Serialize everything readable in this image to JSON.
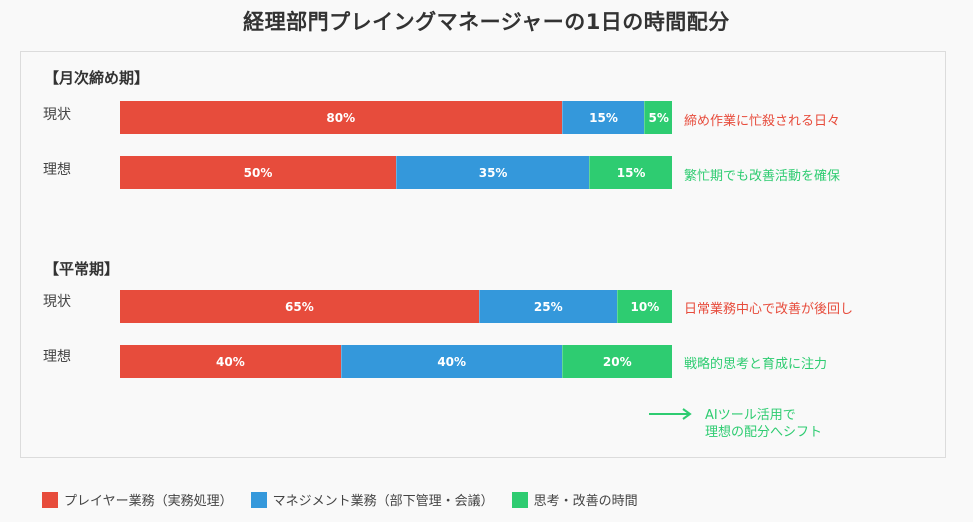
{
  "chart_data": {
    "type": "bar",
    "subtype": "stacked-horizontal-100",
    "title": "経理部門プレイングマネージャーの1日の時間配分",
    "legend_position": "bottom-left",
    "series_names": [
      "プレイヤー業務（実務処理）",
      "マネジメント業務（部下管理・会議）",
      "思考・改善の時間"
    ],
    "colors": [
      "#e74c3c",
      "#3498db",
      "#2ecc71"
    ],
    "groups": [
      {
        "title": "【月次締め期】",
        "rows": [
          {
            "label": "現状",
            "values": [
              80,
              15,
              5
            ],
            "note": "締め作業に忙殺される日々",
            "note_color": "#e74c3c"
          },
          {
            "label": "理想",
            "values": [
              50,
              35,
              15
            ],
            "note": "繁忙期でも改善活動を確保",
            "note_color": "#2ecc71"
          }
        ]
      },
      {
        "title": "【平常期】",
        "rows": [
          {
            "label": "現状",
            "values": [
              65,
              25,
              10
            ],
            "note": "日常業務中心で改善が後回し",
            "note_color": "#e74c3c"
          },
          {
            "label": "理想",
            "values": [
              40,
              40,
              20
            ],
            "note": "戦略的思考と育成に注力",
            "note_color": "#2ecc71"
          }
        ]
      }
    ],
    "unit": "%",
    "annotation": {
      "line1": "AIツール活用で",
      "line2": "理想の配分へシフト",
      "color": "#2ecc71"
    }
  }
}
